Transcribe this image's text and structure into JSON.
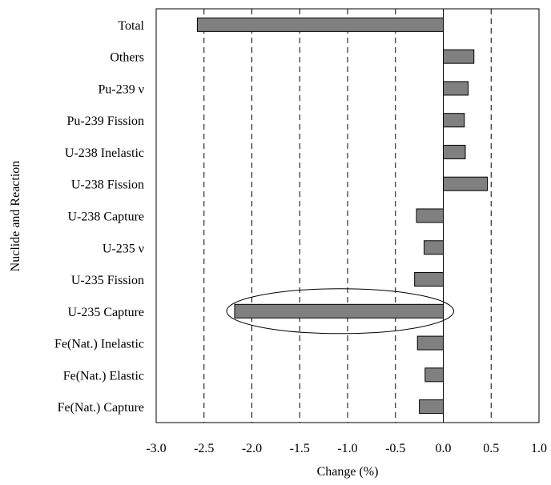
{
  "chart_data": {
    "type": "bar",
    "orientation": "horizontal",
    "title": "",
    "xlabel": "Change (%)",
    "ylabel": "Nuclide and Reaction",
    "xlim": [
      -3.0,
      1.0
    ],
    "x_ticks": [
      -3.0,
      -2.5,
      -2.0,
      -1.5,
      -1.0,
      -0.5,
      0.0,
      0.5,
      1.0
    ],
    "x_tick_labels": [
      "-3.0",
      "-2.5",
      "-2.0",
      "-1.5",
      "-1.0",
      "-0.5",
      "0.0",
      "0.5",
      "1.0"
    ],
    "grid": "vertical dashed",
    "categories": [
      "Total",
      "Others",
      "Pu-239 ν",
      "Pu-239 Fission",
      "U-238 Inelastic",
      "U-238 Fission",
      "U-238 Capture",
      "U-235 ν",
      "U-235 Fission",
      "U-235 Capture",
      "Fe(Nat.) Inelastic",
      "Fe(Nat.)  Elastic",
      "Fe(Nat.) Capture"
    ],
    "values": [
      -2.57,
      0.32,
      0.26,
      0.22,
      0.23,
      0.46,
      -0.28,
      -0.2,
      -0.3,
      -2.18,
      -0.27,
      -0.19,
      -0.25
    ],
    "highlighted_category": "U-235 Capture",
    "colors": {
      "bar_fill": "#808080",
      "bar_stroke": "#000000",
      "grid": "#000000",
      "axis": "#000000"
    }
  }
}
